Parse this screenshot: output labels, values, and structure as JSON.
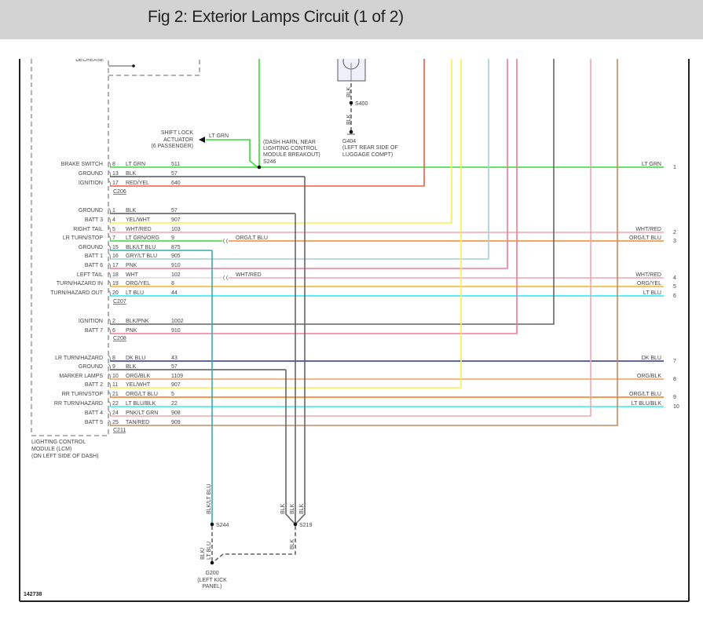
{
  "header": {
    "title": "Fig 2: Exterior Lamps Circuit (1 of 2)"
  },
  "diagram_id": "142738",
  "module": {
    "top_partial_label": "DECREASE",
    "label_lines": [
      "LIGHTING CONTROL",
      "MODULE (LCM)",
      "(ON LEFT SIDE OF DASH)"
    ]
  },
  "connectors": [
    {
      "id": "C206",
      "rows": [
        {
          "function": "BRAKE SWITCH",
          "pin": "8",
          "wire": "LT GRN",
          "circuit": "511",
          "color": "#33dd33"
        },
        {
          "function": "GROUND",
          "pin": "13",
          "wire": "BLK",
          "circuit": "57",
          "color": "#555555"
        },
        {
          "function": "IGNITION",
          "pin": "17",
          "wire": "RED/YEL",
          "circuit": "640",
          "color": "#f05a45"
        }
      ]
    },
    {
      "id": "C207",
      "rows": [
        {
          "function": "GROUND",
          "pin": "1",
          "wire": "BLK",
          "circuit": "57",
          "color": "#555555"
        },
        {
          "function": "BATT 3",
          "pin": "4",
          "wire": "YEL/WHT",
          "circuit": "907",
          "color": "#f5ef55"
        },
        {
          "function": "RIGHT TAIL",
          "pin": "5",
          "wire": "WHT/RED",
          "circuit": "103",
          "color": "#f4a4ae"
        },
        {
          "function": "LR TURN/STOP",
          "pin": "7",
          "wire": "LT GRN/ORG",
          "circuit": "9",
          "color": "#33dd33"
        },
        {
          "function": "GROUND",
          "pin": "15",
          "wire": "BLK/LT BLU",
          "circuit": "875",
          "color": "#3aa8a8"
        },
        {
          "function": "BATT 1",
          "pin": "16",
          "wire": "GRY/LT BLU",
          "circuit": "905",
          "color": "#a6cfd4"
        },
        {
          "function": "BATT 6",
          "pin": "17",
          "wire": "PNK",
          "circuit": "910",
          "color": "#f27a98"
        },
        {
          "function": "LEFT TAIL",
          "pin": "18",
          "wire": "WHT",
          "circuit": "102",
          "color": "#dddddd"
        },
        {
          "function": "TURN/HAZARD IN",
          "pin": "19",
          "wire": "ORG/YEL",
          "circuit": "8",
          "color": "#f5b030"
        },
        {
          "function": "TURN/HAZARD OUT",
          "pin": "20",
          "wire": "LT BLU",
          "circuit": "44",
          "color": "#22e8f2"
        }
      ]
    },
    {
      "id": "C208",
      "rows": [
        {
          "function": "IGNITION",
          "pin": "2",
          "wire": "BLK/PNK",
          "circuit": "1002",
          "color": "#666666"
        },
        {
          "function": "BATT 7",
          "pin": "6",
          "wire": "PNK",
          "circuit": "910",
          "color": "#f27a98"
        }
      ]
    },
    {
      "id": "C211",
      "rows": [
        {
          "function": "LR TURN/HAZARD",
          "pin": "8",
          "wire": "DK BLU",
          "circuit": "43",
          "color": "#223399"
        },
        {
          "function": "GROUND",
          "pin": "9",
          "wire": "BLK",
          "circuit": "57",
          "color": "#555555"
        },
        {
          "function": "MARKER LAMPS",
          "pin": "10",
          "wire": "ORG/BLK",
          "circuit": "1109",
          "color": "#f0a060"
        },
        {
          "function": "BATT 2",
          "pin": "11",
          "wire": "YEL/WHT",
          "circuit": "907",
          "color": "#f5ef55"
        },
        {
          "function": "RR TURN/STOP",
          "pin": "21",
          "wire": "ORG/LT BLU",
          "circuit": "5",
          "color": "#f07a10"
        },
        {
          "function": "RR TURN/HAZARD",
          "pin": "22",
          "wire": "LT BLU/BLK",
          "circuit": "22",
          "color": "#33eeee"
        },
        {
          "function": "BATT 4",
          "pin": "24",
          "wire": "PNK/LT GRN",
          "circuit": "908",
          "color": "#eea8b0"
        },
        {
          "function": "BATT 5",
          "pin": "25",
          "wire": "TAN/RED",
          "circuit": "909",
          "color": "#c98a60"
        }
      ]
    }
  ],
  "inline_splices": [
    {
      "wire": "ORG/LT BLU",
      "color": "#f08a30"
    },
    {
      "wire": "WHT/RED",
      "color": "#f4a4ae"
    }
  ],
  "right_terminals": [
    {
      "number": "1",
      "wire": "LT GRN"
    },
    {
      "number": "2",
      "wire": "WHT/RED"
    },
    {
      "number": "3",
      "wire": "ORG/LT BLU"
    },
    {
      "number": "4",
      "wire": "WHT/RED"
    },
    {
      "number": "5",
      "wire": "ORG/YEL"
    },
    {
      "number": "6",
      "wire": "LT BLU"
    },
    {
      "number": "7",
      "wire": "DK BLU"
    },
    {
      "number": "8",
      "wire": "ORG/BLK"
    },
    {
      "number": "9",
      "wire": "ORG/LT BLU"
    },
    {
      "number": "10",
      "wire": "LT BLU/BLK"
    }
  ],
  "shift_lock": {
    "label_lines": [
      "SHIFT LOCK",
      "ACTUATOR",
      "(6 PASSENGER)"
    ],
    "wire": "LT GRN"
  },
  "s246": {
    "id": "S246",
    "note_lines": [
      "(DASH HARN, NEAR",
      "LIGHTING CONTROL",
      "MODULE BREAKOUT)"
    ]
  },
  "s400": {
    "id": "S400",
    "wire": "BLK"
  },
  "g404": {
    "id": "G404",
    "note_lines": [
      "(LEFT REAR SIDE OF",
      "LUGGAGE COMPT)"
    ],
    "wire": "BLK"
  },
  "s219": {
    "id": "S219",
    "wire": "BLK"
  },
  "s244": {
    "id": "S244",
    "wire": "BLK/LT BLU",
    "ground_wire_lines": [
      "BLK/",
      "LT BLU"
    ]
  },
  "g200": {
    "id": "G200",
    "note_lines": [
      "(LEFT KICK",
      "PANEL)"
    ]
  }
}
